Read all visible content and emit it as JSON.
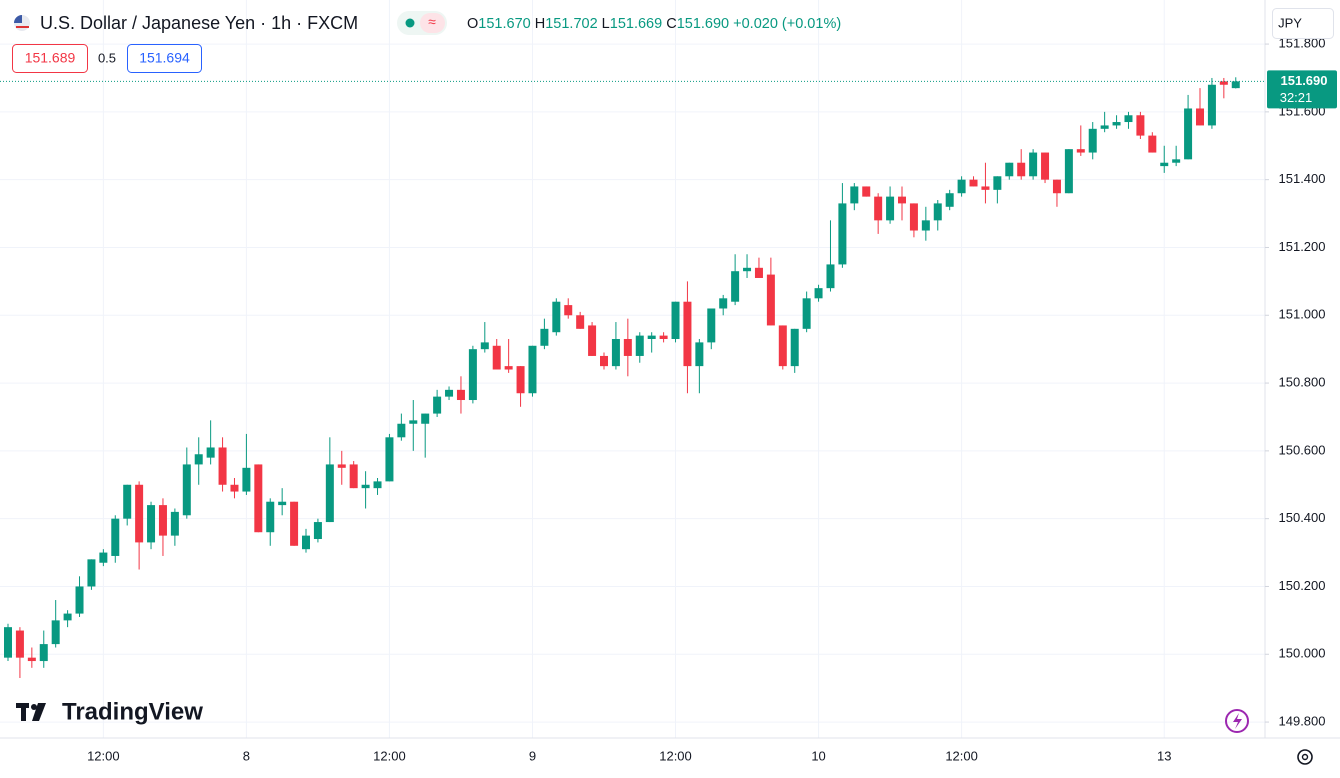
{
  "header": {
    "title": "U.S. Dollar / Japanese Yen · 1h · FXCM",
    "ohlc": [
      {
        "label": "O",
        "value": "151.670"
      },
      {
        "label": "H",
        "value": "151.702"
      },
      {
        "label": "L",
        "value": "151.669"
      },
      {
        "label": "C",
        "value": "151.690"
      }
    ],
    "change": "+0.020 (+0.01%)",
    "bid": "151.689",
    "spread": "0.5",
    "ask": "151.694",
    "currency": "JPY",
    "logo": "TradingView"
  },
  "chart_data": {
    "type": "candlestick",
    "up_color": "#089981",
    "down_color": "#f23645",
    "categories": [
      null,
      null,
      null,
      null,
      null,
      null,
      null,
      null,
      "12:00",
      null,
      null,
      null,
      null,
      null,
      null,
      null,
      null,
      null,
      null,
      null,
      "8",
      null,
      null,
      null,
      null,
      null,
      null,
      null,
      null,
      null,
      null,
      null,
      "12:00",
      null,
      null,
      null,
      null,
      null,
      null,
      null,
      null,
      null,
      null,
      null,
      "9",
      null,
      null,
      null,
      null,
      null,
      null,
      null,
      null,
      null,
      null,
      null,
      "12:00",
      null,
      null,
      null,
      null,
      null,
      null,
      null,
      null,
      null,
      null,
      null,
      "10",
      null,
      null,
      null,
      null,
      null,
      null,
      null,
      null,
      null,
      null,
      null,
      "12:00",
      null,
      null,
      null,
      null,
      null,
      null,
      null,
      null,
      null,
      null,
      null,
      null,
      null,
      null,
      null,
      null,
      "13",
      null,
      null,
      null,
      null,
      null,
      null
    ],
    "open": [
      149.99,
      150.07,
      149.99,
      149.98,
      150.03,
      150.1,
      150.12,
      150.2,
      150.27,
      150.29,
      150.4,
      150.5,
      150.33,
      150.44,
      150.35,
      150.41,
      150.56,
      150.58,
      150.61,
      150.5,
      150.48,
      150.56,
      150.36,
      150.44,
      150.45,
      150.31,
      150.34,
      150.39,
      150.56,
      150.56,
      150.49,
      150.49,
      150.51,
      150.64,
      150.68,
      150.68,
      150.71,
      150.76,
      150.78,
      150.75,
      150.9,
      150.91,
      150.85,
      150.85,
      150.77,
      150.91,
      150.95,
      151.03,
      151.0,
      150.97,
      150.88,
      150.85,
      150.93,
      150.88,
      150.93,
      150.94,
      150.93,
      151.04,
      150.85,
      150.92,
      151.02,
      151.04,
      151.13,
      151.14,
      151.12,
      150.97,
      150.85,
      150.96,
      151.05,
      151.08,
      151.15,
      151.33,
      151.38,
      151.35,
      151.28,
      151.35,
      151.33,
      151.25,
      151.28,
      151.32,
      151.36,
      151.4,
      151.38,
      151.37,
      151.41,
      151.45,
      151.41,
      151.48,
      151.4,
      151.36,
      151.49,
      151.48,
      151.55,
      151.56,
      151.57,
      151.59,
      151.53,
      151.44,
      151.45,
      151.46,
      151.61,
      151.56,
      151.69,
      151.67
    ],
    "high": [
      150.09,
      150.08,
      150.02,
      150.07,
      150.16,
      150.13,
      150.23,
      150.28,
      150.31,
      150.41,
      150.5,
      150.51,
      150.45,
      150.46,
      150.43,
      150.61,
      150.64,
      150.69,
      150.64,
      150.52,
      150.65,
      150.56,
      150.46,
      150.49,
      150.45,
      150.37,
      150.4,
      150.64,
      150.6,
      150.57,
      150.54,
      150.52,
      150.65,
      150.71,
      150.75,
      150.71,
      150.78,
      150.79,
      150.82,
      150.91,
      150.98,
      150.93,
      150.93,
      150.85,
      150.91,
      150.99,
      151.05,
      151.05,
      151.01,
      150.98,
      150.89,
      150.98,
      150.99,
      150.95,
      150.95,
      150.95,
      151.04,
      151.1,
      150.93,
      151.02,
      151.06,
      151.18,
      151.18,
      151.17,
      151.17,
      150.97,
      150.96,
      151.07,
      151.09,
      151.28,
      151.39,
      151.39,
      151.38,
      151.36,
      151.38,
      151.38,
      151.33,
      151.32,
      151.34,
      151.37,
      151.41,
      151.41,
      151.45,
      151.41,
      151.45,
      151.49,
      151.49,
      151.48,
      151.4,
      151.49,
      151.56,
      151.57,
      151.6,
      151.59,
      151.6,
      151.6,
      151.54,
      151.5,
      151.5,
      151.65,
      151.67,
      151.7,
      151.7,
      151.702
    ],
    "low": [
      149.98,
      149.93,
      149.96,
      149.96,
      150.02,
      150.08,
      150.11,
      150.19,
      150.26,
      150.27,
      150.38,
      150.25,
      150.31,
      150.29,
      150.32,
      150.4,
      150.5,
      150.56,
      150.48,
      150.46,
      150.47,
      150.36,
      150.32,
      150.41,
      150.32,
      150.3,
      150.33,
      150.39,
      150.5,
      150.49,
      150.43,
      150.47,
      150.51,
      150.63,
      150.6,
      150.58,
      150.7,
      150.75,
      150.71,
      150.74,
      150.89,
      150.84,
      150.83,
      150.73,
      150.76,
      150.9,
      150.94,
      150.99,
      150.96,
      150.88,
      150.84,
      150.84,
      150.82,
      150.86,
      150.89,
      150.92,
      150.92,
      150.77,
      150.77,
      150.9,
      151.0,
      151.03,
      151.11,
      151.11,
      150.97,
      150.84,
      150.83,
      150.95,
      151.04,
      151.07,
      151.14,
      151.31,
      151.35,
      151.24,
      151.27,
      151.28,
      151.23,
      151.22,
      151.25,
      151.31,
      151.35,
      151.38,
      151.33,
      151.33,
      151.4,
      151.4,
      151.4,
      151.39,
      151.32,
      151.36,
      151.47,
      151.46,
      151.54,
      151.55,
      151.55,
      151.52,
      151.48,
      151.42,
      151.44,
      151.46,
      151.56,
      151.55,
      151.64,
      151.669
    ],
    "close": [
      150.08,
      149.99,
      149.98,
      150.03,
      150.1,
      150.12,
      150.2,
      150.28,
      150.3,
      150.4,
      150.5,
      150.33,
      150.44,
      150.35,
      150.42,
      150.56,
      150.59,
      150.61,
      150.5,
      150.48,
      150.55,
      150.36,
      150.45,
      150.45,
      150.32,
      150.35,
      150.39,
      150.56,
      150.55,
      150.49,
      150.5,
      150.51,
      150.64,
      150.68,
      150.69,
      150.71,
      150.76,
      150.78,
      150.75,
      150.9,
      150.92,
      150.84,
      150.84,
      150.77,
      150.91,
      150.96,
      151.04,
      151.0,
      150.96,
      150.88,
      150.85,
      150.93,
      150.88,
      150.94,
      150.94,
      150.93,
      151.04,
      150.85,
      150.92,
      151.02,
      151.05,
      151.13,
      151.14,
      151.11,
      150.97,
      150.85,
      150.96,
      151.05,
      151.08,
      151.15,
      151.33,
      151.38,
      151.35,
      151.28,
      151.35,
      151.33,
      151.25,
      151.28,
      151.33,
      151.36,
      151.4,
      151.38,
      151.37,
      151.41,
      151.45,
      151.41,
      151.48,
      151.4,
      151.36,
      151.49,
      151.48,
      151.55,
      151.56,
      151.57,
      151.59,
      151.53,
      151.48,
      151.45,
      151.46,
      151.61,
      151.56,
      151.68,
      151.68,
      151.69
    ],
    "ylim": [
      149.753,
      151.93
    ],
    "yticks": [
      {
        "value": 149.8,
        "label": "149.800"
      },
      {
        "value": 150.0,
        "label": "150.000"
      },
      {
        "value": 150.2,
        "label": "150.200"
      },
      {
        "value": 150.4,
        "label": "150.400"
      },
      {
        "value": 150.6,
        "label": "150.600"
      },
      {
        "value": 150.8,
        "label": "150.800"
      },
      {
        "value": 151.0,
        "label": "151.000"
      },
      {
        "value": 151.2,
        "label": "151.200"
      },
      {
        "value": 151.4,
        "label": "151.400"
      },
      {
        "value": 151.6,
        "label": "151.600"
      },
      {
        "value": 151.8,
        "label": "151.800"
      }
    ],
    "last_price": {
      "value": 151.69,
      "label": "151.690"
    },
    "countdown": "32:21",
    "grid": true
  }
}
